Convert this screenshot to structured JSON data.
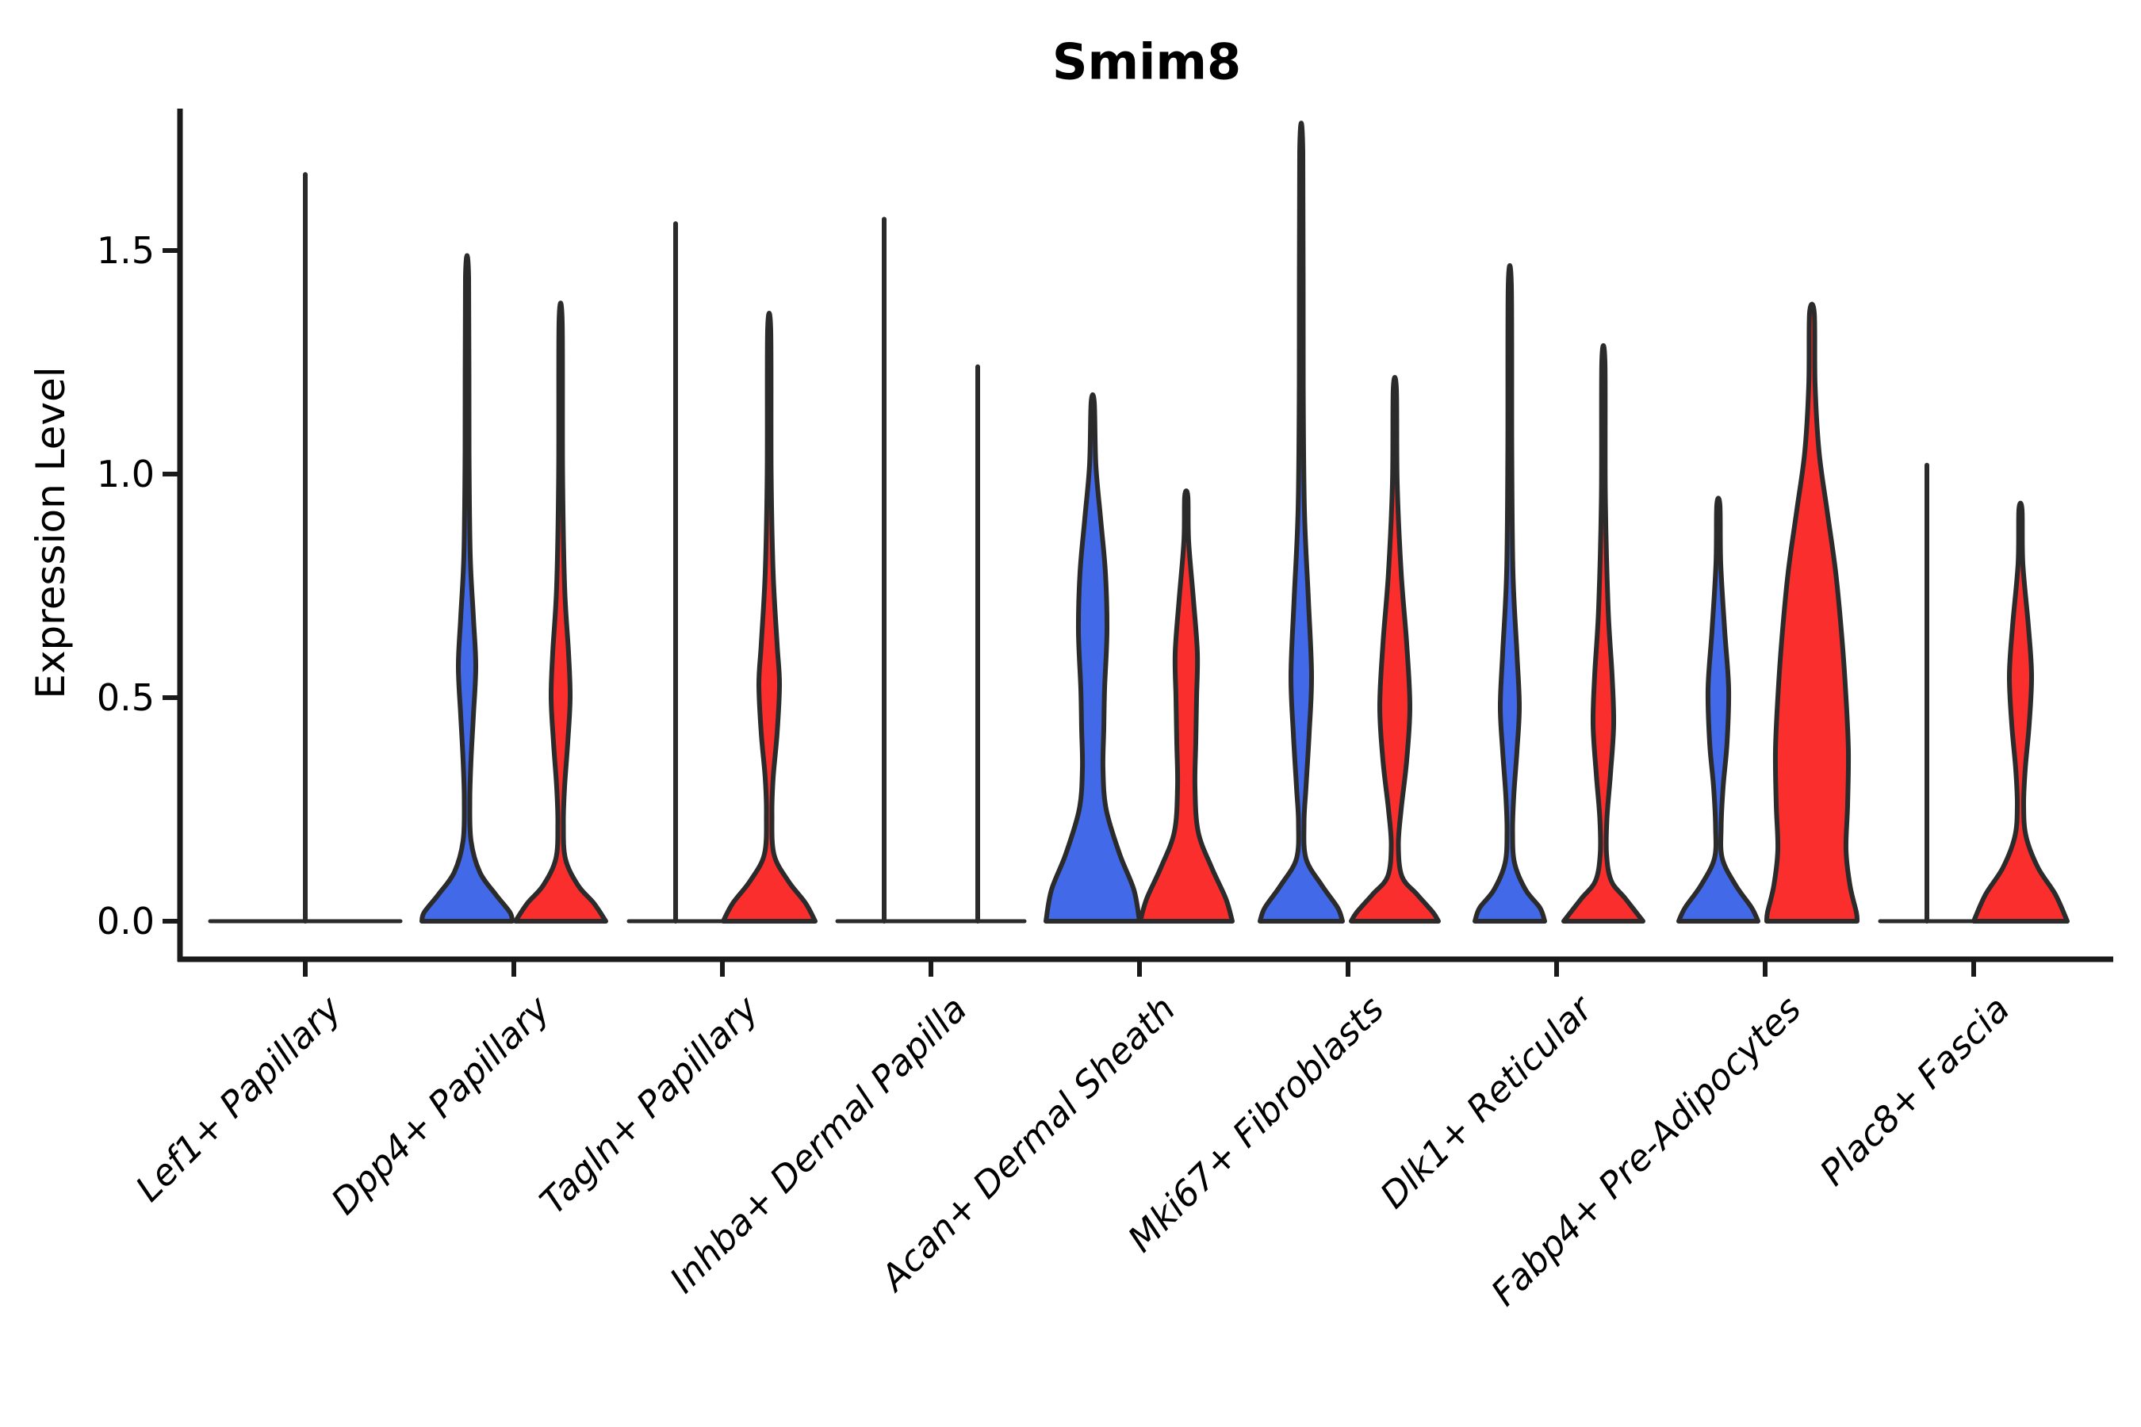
{
  "title": "Smim8",
  "axes": {
    "ylabel": "Expression Level",
    "yticks": [
      {
        "value": 0.0,
        "label": "0.0"
      },
      {
        "value": 0.5,
        "label": "0.5"
      },
      {
        "value": 1.0,
        "label": "1.0"
      },
      {
        "value": 1.5,
        "label": "1.5"
      }
    ]
  },
  "palette": {
    "blue": "#4169e8",
    "red": "#fb2e2e",
    "outline": "#2b2b2b",
    "axis": "#1a1a1a"
  },
  "chart_data": {
    "type": "violin",
    "title": "Smim8",
    "xlabel": "",
    "ylabel": "Expression Level",
    "ylim": [
      -0.09,
      1.82
    ],
    "yticks": [
      0.0,
      0.5,
      1.0,
      1.5
    ],
    "grid": false,
    "legend": "none",
    "categories": [
      "Lef1+ Papillary",
      "Dpp4+ Papillary",
      "Tagln+ Papillary",
      "Inhba+ Dermal Papilla",
      "Acan+ Dermal Sheath",
      "Mki67+ Fibroblasts",
      "Dlk1+ Reticular",
      "Fabp4+ Pre-Adipocytes",
      "Plac8+ Fascia"
    ],
    "groups": [
      {
        "category": "Lef1+ Papillary",
        "violins": [
          {
            "split": "single",
            "color": "none",
            "flat": true,
            "half_span": 120,
            "max": 1.67
          }
        ]
      },
      {
        "category": "Dpp4+ Papillary",
        "violins": [
          {
            "split": "blue",
            "color": "blue",
            "flat": false,
            "max": 1.44,
            "profile": [
              [
                1.44,
                2
              ],
              [
                1.05,
                2.5
              ],
              [
                0.82,
                4
              ],
              [
                0.68,
                8
              ],
              [
                0.57,
                11
              ],
              [
                0.46,
                8
              ],
              [
                0.36,
                5
              ],
              [
                0.27,
                3.5
              ],
              [
                0.18,
                5
              ],
              [
                0.11,
                16
              ],
              [
                0.06,
                36
              ],
              [
                0.02,
                54
              ],
              [
                0,
                57
              ]
            ]
          },
          {
            "split": "red",
            "color": "red",
            "flat": false,
            "max": 1.34,
            "profile": [
              [
                1.34,
                2
              ],
              [
                1.0,
                2.5
              ],
              [
                0.75,
                5
              ],
              [
                0.6,
                10
              ],
              [
                0.5,
                12
              ],
              [
                0.4,
                9
              ],
              [
                0.3,
                5
              ],
              [
                0.22,
                3.5
              ],
              [
                0.14,
                6
              ],
              [
                0.08,
                22
              ],
              [
                0.04,
                42
              ],
              [
                0,
                57
              ]
            ]
          }
        ]
      },
      {
        "category": "Tagln+ Papillary",
        "violins": [
          {
            "split": "blue",
            "color": "blue",
            "flat": true,
            "half_span": 59,
            "max": 1.56
          },
          {
            "split": "red",
            "color": "red",
            "flat": false,
            "max": 1.32,
            "profile": [
              [
                1.32,
                2
              ],
              [
                1.0,
                2.5
              ],
              [
                0.78,
                5
              ],
              [
                0.62,
                10
              ],
              [
                0.53,
                13
              ],
              [
                0.42,
                10
              ],
              [
                0.32,
                5
              ],
              [
                0.24,
                3.5
              ],
              [
                0.15,
                6
              ],
              [
                0.09,
                24
              ],
              [
                0.04,
                46
              ],
              [
                0,
                58
              ]
            ]
          }
        ]
      },
      {
        "category": "Inhba+ Dermal Papilla",
        "violins": [
          {
            "split": "blue",
            "color": "blue",
            "flat": true,
            "half_span": 59,
            "max": 1.57
          },
          {
            "split": "red",
            "color": "red",
            "flat": true,
            "half_span": 59,
            "max": 1.24
          }
        ]
      },
      {
        "category": "Acan+ Dermal Sheath",
        "violins": [
          {
            "split": "blue",
            "color": "blue",
            "flat": false,
            "max": 1.16,
            "profile": [
              [
                1.16,
                2
              ],
              [
                1.02,
                4
              ],
              [
                0.9,
                10
              ],
              [
                0.78,
                16
              ],
              [
                0.65,
                18
              ],
              [
                0.52,
                15
              ],
              [
                0.43,
                14
              ],
              [
                0.34,
                13
              ],
              [
                0.25,
                17
              ],
              [
                0.15,
                34
              ],
              [
                0.07,
                52
              ],
              [
                0,
                59
              ]
            ]
          },
          {
            "split": "red",
            "color": "red",
            "flat": false,
            "max": 0.95,
            "profile": [
              [
                0.95,
                2
              ],
              [
                0.85,
                3
              ],
              [
                0.72,
                9
              ],
              [
                0.6,
                14
              ],
              [
                0.5,
                13
              ],
              [
                0.4,
                12
              ],
              [
                0.3,
                11
              ],
              [
                0.2,
                15
              ],
              [
                0.12,
                32
              ],
              [
                0.05,
                50
              ],
              [
                0,
                58
              ]
            ]
          }
        ]
      },
      {
        "category": "Mki67+ Fibroblasts",
        "violins": [
          {
            "split": "blue",
            "color": "blue",
            "flat": false,
            "max": 1.72,
            "profile": [
              [
                1.72,
                2
              ],
              [
                1.2,
                2.5
              ],
              [
                0.92,
                4
              ],
              [
                0.72,
                9
              ],
              [
                0.55,
                13
              ],
              [
                0.42,
                10
              ],
              [
                0.3,
                6
              ],
              [
                0.22,
                3.5
              ],
              [
                0.14,
                6
              ],
              [
                0.08,
                26
              ],
              [
                0.03,
                46
              ],
              [
                0,
                52
              ]
            ]
          },
          {
            "split": "red",
            "color": "red",
            "flat": false,
            "max": 1.19,
            "profile": [
              [
                1.19,
                2
              ],
              [
                0.98,
                3
              ],
              [
                0.78,
                8
              ],
              [
                0.62,
                15
              ],
              [
                0.48,
                19
              ],
              [
                0.36,
                15
              ],
              [
                0.25,
                8
              ],
              [
                0.17,
                4.5
              ],
              [
                0.1,
                9
              ],
              [
                0.06,
                28
              ],
              [
                0.02,
                48
              ],
              [
                0,
                55
              ]
            ]
          }
        ]
      },
      {
        "category": "Dlk1+ Reticular",
        "violins": [
          {
            "split": "blue",
            "color": "blue",
            "flat": false,
            "max": 1.42,
            "profile": [
              [
                1.42,
                2
              ],
              [
                1.05,
                2.5
              ],
              [
                0.78,
                4
              ],
              [
                0.6,
                9
              ],
              [
                0.48,
                12
              ],
              [
                0.38,
                9
              ],
              [
                0.28,
                5
              ],
              [
                0.2,
                3.5
              ],
              [
                0.13,
                6
              ],
              [
                0.07,
                20
              ],
              [
                0.03,
                38
              ],
              [
                0,
                44
              ]
            ]
          },
          {
            "split": "red",
            "color": "red",
            "flat": false,
            "max": 1.25,
            "profile": [
              [
                1.25,
                2
              ],
              [
                0.95,
                2.5
              ],
              [
                0.7,
                6
              ],
              [
                0.55,
                11
              ],
              [
                0.44,
                13
              ],
              [
                0.33,
                9
              ],
              [
                0.23,
                4.5
              ],
              [
                0.15,
                4
              ],
              [
                0.09,
                10
              ],
              [
                0.05,
                28
              ],
              [
                0,
                50
              ]
            ]
          }
        ]
      },
      {
        "category": "Fabp4+ Pre-Adipocytes",
        "violins": [
          {
            "split": "blue",
            "color": "blue",
            "flat": false,
            "max": 0.93,
            "profile": [
              [
                0.93,
                2
              ],
              [
                0.8,
                3
              ],
              [
                0.65,
                8
              ],
              [
                0.52,
                13
              ],
              [
                0.4,
                11
              ],
              [
                0.3,
                6
              ],
              [
                0.21,
                3.5
              ],
              [
                0.14,
                5
              ],
              [
                0.08,
                22
              ],
              [
                0.03,
                42
              ],
              [
                0,
                50
              ]
            ]
          },
          {
            "split": "red",
            "color": "red",
            "flat": false,
            "max": 1.36,
            "profile": [
              [
                1.36,
                3
              ],
              [
                1.2,
                4
              ],
              [
                1.05,
                9
              ],
              [
                0.92,
                19
              ],
              [
                0.78,
                30
              ],
              [
                0.63,
                38
              ],
              [
                0.5,
                43
              ],
              [
                0.38,
                46
              ],
              [
                0.26,
                45
              ],
              [
                0.16,
                43
              ],
              [
                0.08,
                48
              ],
              [
                0.02,
                56
              ],
              [
                0,
                57
              ]
            ]
          }
        ]
      },
      {
        "category": "Plac8+ Fascia",
        "violins": [
          {
            "split": "blue",
            "color": "blue",
            "flat": true,
            "half_span": 59,
            "max": 1.02
          },
          {
            "split": "red",
            "color": "red",
            "flat": false,
            "max": 0.92,
            "profile": [
              [
                0.92,
                2
              ],
              [
                0.8,
                3
              ],
              [
                0.66,
                10
              ],
              [
                0.55,
                14
              ],
              [
                0.44,
                11
              ],
              [
                0.34,
                6
              ],
              [
                0.26,
                4
              ],
              [
                0.19,
                7
              ],
              [
                0.12,
                22
              ],
              [
                0.06,
                44
              ],
              [
                0,
                59
              ]
            ]
          }
        ]
      }
    ]
  }
}
